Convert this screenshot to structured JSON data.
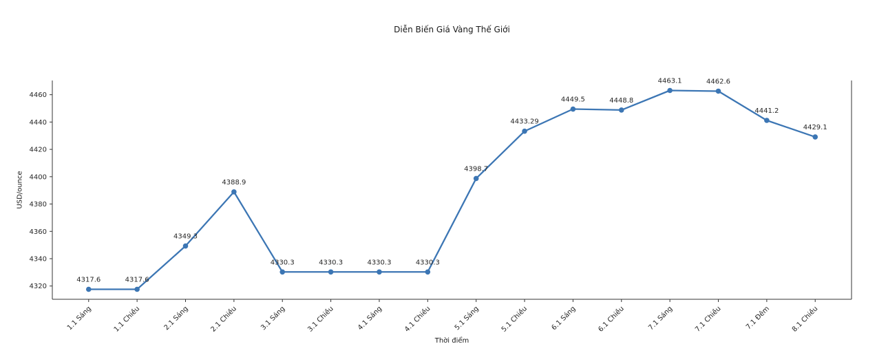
{
  "chart_data": {
    "type": "line",
    "title": "Diễn Biến Giá Vàng Thế Giới",
    "xlabel": "Thời điểm",
    "ylabel": "USD/ounce",
    "categories": [
      "1.1 Sáng",
      "1.1 Chiều",
      "2.1 Sáng",
      "2.1 Chiều",
      "3.1 Sáng",
      "3.1 Chiều",
      "4.1 Sáng",
      "4.1 Chiều",
      "5.1 Sáng",
      "5.1 Chiều",
      "6.1 Sáng",
      "6.1 Chiều",
      "7.1 Sáng",
      "7.1 Chiều",
      "7.1 Đêm",
      "8.1 Chiều"
    ],
    "values": [
      4317.6,
      4317.6,
      4349.3,
      4388.9,
      4330.3,
      4330.3,
      4330.3,
      4330.3,
      4398.7,
      4433.29,
      4449.5,
      4448.8,
      4463.1,
      4462.6,
      4441.2,
      4429.1
    ],
    "point_labels": [
      "4317.6",
      "4317.6",
      "4349.3",
      "4388.9",
      "4330.3",
      "4330.3",
      "4330.3",
      "4330.3",
      "4398.7",
      "4433.29",
      "4449.5",
      "4448.8",
      "4463.1",
      "4462.6",
      "4441.2",
      "4429.1"
    ],
    "y_ticks": [
      4320,
      4340,
      4360,
      4380,
      4400,
      4420,
      4440,
      4460
    ],
    "ylim": [
      4310.3,
      4470.4
    ],
    "x_tick_rotation": 45,
    "grid": false,
    "legend": "none",
    "line_color": "#3c76b4",
    "marker": "circle",
    "axis_color": "#333333",
    "text_color": "#262626",
    "background": "#ffffff"
  }
}
